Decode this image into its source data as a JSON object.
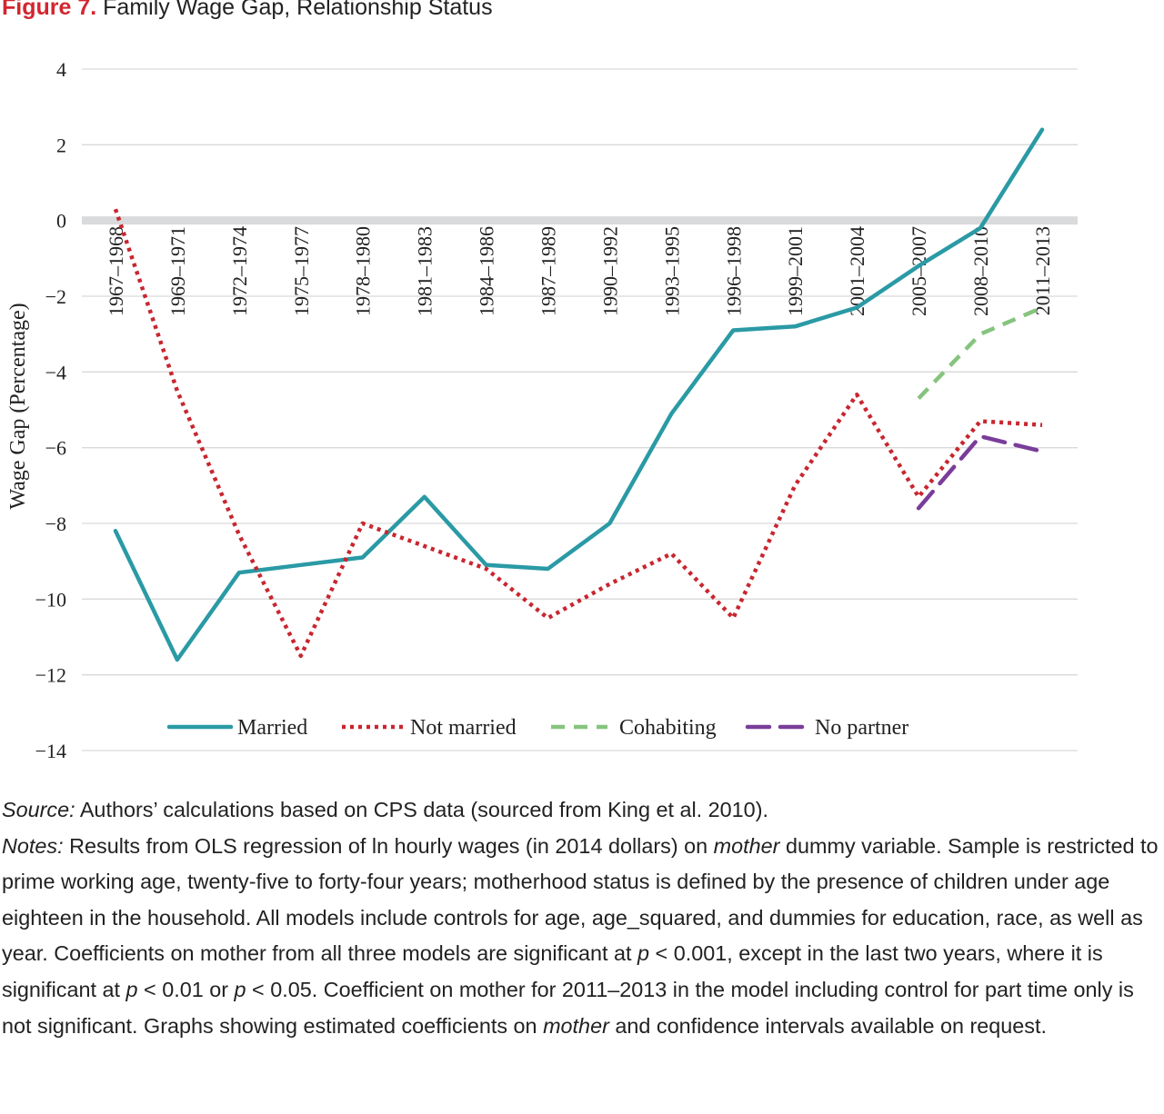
{
  "figure": {
    "label": "Figure 7.",
    "title": "Family Wage Gap, Relationship Status"
  },
  "colors": {
    "figure_label": "#d22630",
    "married": "#2a9aa5",
    "not_married": "#c8262f",
    "cohabiting": "#86c47e",
    "no_partner": "#7a3d9a",
    "zero_line": "#d9dadc",
    "gridline": "#d9d9d9"
  },
  "chart_data": {
    "type": "line",
    "title": "",
    "xlabel": "",
    "ylabel": "Wage Gap (Percentage)",
    "ylim": [
      -14,
      4
    ],
    "yticks": [
      4,
      2,
      0,
      -2,
      -4,
      -6,
      -8,
      -10,
      -12,
      -14
    ],
    "ytick_labels": [
      "4",
      "2",
      "0",
      "−2",
      "−4",
      "−6",
      "−8",
      "−10",
      "−12",
      "−14"
    ],
    "categories": [
      "1967–1968",
      "1969–1971",
      "1972–1974",
      "1975–1977",
      "1978–1980",
      "1981–1983",
      "1984–1986",
      "1987–1989",
      "1990–1992",
      "1993–1995",
      "1996–1998",
      "1999–2001",
      "2001–2004",
      "2005–2007",
      "2008–2010",
      "2011–2013"
    ],
    "grid": true,
    "legend_position": "bottom",
    "series": [
      {
        "name": "Married",
        "style": "solid",
        "color": "#2a9aa5",
        "values": [
          -8.2,
          -11.6,
          -9.3,
          -9.1,
          -8.9,
          -7.3,
          -9.1,
          -9.2,
          -8.0,
          -5.1,
          -2.9,
          -2.8,
          -2.3,
          -1.2,
          -0.2,
          2.4
        ]
      },
      {
        "name": "Not married",
        "style": "dotted",
        "color": "#c8262f",
        "values": [
          0.3,
          -4.5,
          -8.3,
          -11.5,
          -8.0,
          -8.6,
          -9.2,
          -10.5,
          -9.6,
          -8.8,
          -10.5,
          -7.0,
          -4.6,
          -7.3,
          -5.3,
          -5.4
        ]
      },
      {
        "name": "Cohabiting",
        "style": "dashed",
        "color": "#86c47e",
        "values": [
          null,
          null,
          null,
          null,
          null,
          null,
          null,
          null,
          null,
          null,
          null,
          null,
          null,
          -4.7,
          -3.0,
          -2.3
        ]
      },
      {
        "name": "No partner",
        "style": "longdash",
        "color": "#7a3d9a",
        "values": [
          null,
          null,
          null,
          null,
          null,
          null,
          null,
          null,
          null,
          null,
          null,
          null,
          null,
          -7.6,
          -5.7,
          -6.1
        ]
      }
    ]
  },
  "notes": {
    "source_label": "Source:",
    "source_text": " Authors’ calculations based on CPS data (sourced from King et al. 2010).",
    "notes_label": "Notes:",
    "text_1": " Results from OLS regression of ln hourly wages (in 2014 dollars) on ",
    "mother_1": "mother",
    "text_2": " dummy variable. Sample is restricted to prime working age, twenty-five to forty-four years; motherhood status is defined by the presence of children under age eighteen in the household. All models include controls for age, age_squared, and dummies for education, race, as well as year. Coefficients on mother from all three models are significant at ",
    "p_1": "p",
    "text_3": " < 0.001, except in the last two years, where it is significant at ",
    "p_2": "p",
    "text_4": " < 0.01 or ",
    "p_3": "p",
    "text_5": " < 0.05. Coefficient on mother for 2011–2013 in the model including control for part time only is not significant. Graphs showing estimated coefficients on ",
    "mother_2": "mother",
    "text_6": " and confidence intervals available on request."
  }
}
